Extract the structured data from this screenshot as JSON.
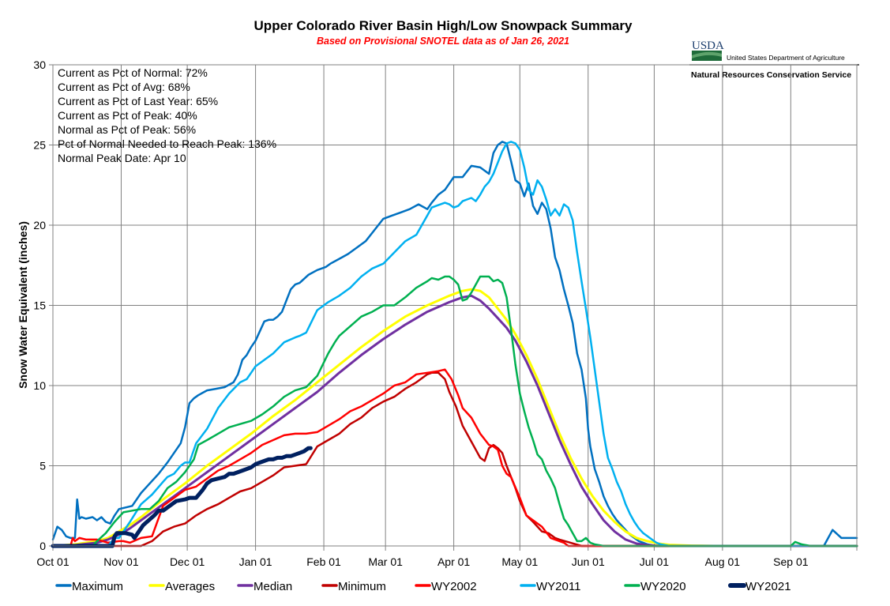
{
  "header": {
    "title": "Upper Colorado River Basin High/Low Snowpack Summary",
    "subtitle": "Based on Provisional SNOTEL data as of Jan 26, 2021"
  },
  "logo": {
    "abbrev": "USDA",
    "department": "United States Department of Agriculture",
    "agency": "Natural Resources Conservation Service"
  },
  "stats": [
    "Current as Pct of Normal:  72%",
    "Current as Pct of Avg: 68%",
    "Current as Pct of Last Year: 65%",
    "Current as Pct of Peak: 40%",
    "Normal as Pct of Peak: 56%",
    "Pct of Normal Needed to Reach Peak: 136%",
    "Normal Peak Date: Apr 10"
  ],
  "chart_data": {
    "type": "line",
    "title": "Upper Colorado River Basin High/Low Snowpack Summary",
    "subtitle": "Based on Provisional SNOTEL data as of Jan 26, 2021",
    "xlabel": "",
    "ylabel": "Snow Water Equivalent  (inches)",
    "x_unit": "day of water year (0 = Oct 01)",
    "xlim": [
      0,
      365
    ],
    "ylim": [
      0,
      30
    ],
    "yticks": [
      0,
      5,
      10,
      15,
      20,
      25,
      30
    ],
    "xticks": [
      {
        "day": 0,
        "label": "Oct 01"
      },
      {
        "day": 31,
        "label": "Nov 01"
      },
      {
        "day": 61,
        "label": "Dec 01"
      },
      {
        "day": 92,
        "label": "Jan 01"
      },
      {
        "day": 123,
        "label": "Feb 01"
      },
      {
        "day": 151,
        "label": "Mar 01"
      },
      {
        "day": 182,
        "label": "Apr 01"
      },
      {
        "day": 212,
        "label": "May 01"
      },
      {
        "day": 243,
        "label": "Jun 01"
      },
      {
        "day": 273,
        "label": "Jul 01"
      },
      {
        "day": 304,
        "label": "Aug 01"
      },
      {
        "day": 335,
        "label": "Sep 01"
      }
    ],
    "grid": true,
    "legend_position": "bottom",
    "series": [
      {
        "name": "Maximum",
        "color": "#0070c0",
        "width": 2.5,
        "x": [
          0,
          2,
          4,
          6,
          8,
          10,
          11,
          12,
          13,
          15,
          18,
          20,
          22,
          24,
          26,
          28,
          30,
          33,
          36,
          40,
          44,
          48,
          52,
          56,
          58,
          60,
          62,
          64,
          66,
          70,
          74,
          78,
          82,
          84,
          86,
          88,
          90,
          92,
          96,
          98,
          100,
          102,
          104,
          106,
          108,
          110,
          112,
          116,
          120,
          122,
          124,
          126,
          130,
          134,
          138,
          142,
          146,
          150,
          154,
          158,
          162,
          166,
          170,
          172,
          175,
          178,
          182,
          186,
          190,
          194,
          198,
          200,
          202,
          204,
          206,
          208,
          210,
          212,
          214,
          216,
          218,
          220,
          222,
          224,
          226,
          228,
          230,
          232,
          234,
          236,
          238,
          240,
          242,
          243,
          244,
          246,
          248,
          250,
          252,
          254,
          256,
          258,
          260,
          262,
          264,
          266,
          268,
          270,
          272,
          274,
          276,
          278,
          280,
          282,
          284,
          286,
          290,
          300,
          330,
          345,
          350,
          354,
          358,
          365
        ],
        "y": [
          0.4,
          1.2,
          1.0,
          0.6,
          0.5,
          0.5,
          2.9,
          1.7,
          1.8,
          1.7,
          1.8,
          1.6,
          1.8,
          1.5,
          1.4,
          1.9,
          2.3,
          2.4,
          2.5,
          3.3,
          3.9,
          4.5,
          5.2,
          6.0,
          6.4,
          7.4,
          8.9,
          9.2,
          9.4,
          9.7,
          9.8,
          9.9,
          10.2,
          10.7,
          11.6,
          11.9,
          12.4,
          12.8,
          14.0,
          14.1,
          14.1,
          14.3,
          14.6,
          15.3,
          16.0,
          16.3,
          16.4,
          16.9,
          17.2,
          17.3,
          17.4,
          17.6,
          17.9,
          18.2,
          18.6,
          19.0,
          19.7,
          20.4,
          20.6,
          20.8,
          21.0,
          21.3,
          21.0,
          21.4,
          21.9,
          22.2,
          23.0,
          23.0,
          23.7,
          23.6,
          23.2,
          24.5,
          25.0,
          25.2,
          25.1,
          24.0,
          22.8,
          22.6,
          21.8,
          22.6,
          21.2,
          20.7,
          21.4,
          21.0,
          19.8,
          18.0,
          17.2,
          16.0,
          15.0,
          13.9,
          12.0,
          11.0,
          9.2,
          7.3,
          6.2,
          4.8,
          4.0,
          3.1,
          2.5,
          2.0,
          1.6,
          1.3,
          1.0,
          0.7,
          0.5,
          0.3,
          0.2,
          0.1,
          0.05,
          0.0,
          0.0,
          0.0,
          0.0,
          0.0,
          0.0,
          0.0,
          0.0,
          0.0,
          0.0,
          0.0,
          0.0,
          1.0,
          0.5,
          0.5
        ]
      },
      {
        "name": "Averages",
        "color": "#ffff00",
        "width": 3,
        "x": [
          0,
          10,
          20,
          25,
          30,
          35,
          40,
          50,
          60,
          70,
          80,
          90,
          100,
          110,
          120,
          130,
          140,
          150,
          160,
          170,
          180,
          186,
          190,
          194,
          198,
          202,
          206,
          210,
          215,
          220,
          225,
          230,
          235,
          240,
          245,
          250,
          255,
          260,
          265,
          270,
          275,
          280,
          290,
          300,
          365
        ],
        "y": [
          0.0,
          0.1,
          0.3,
          0.5,
          0.9,
          1.3,
          1.8,
          2.9,
          3.9,
          5.0,
          6.0,
          7.0,
          8.1,
          9.1,
          10.2,
          11.3,
          12.4,
          13.4,
          14.3,
          15.0,
          15.6,
          15.9,
          16.0,
          15.9,
          15.5,
          14.8,
          14.1,
          13.2,
          11.9,
          10.4,
          8.7,
          7.0,
          5.5,
          4.2,
          3.1,
          2.2,
          1.5,
          0.9,
          0.5,
          0.3,
          0.15,
          0.07,
          0.02,
          0.0,
          0.0
        ]
      },
      {
        "name": "Median",
        "color": "#7030a0",
        "width": 3,
        "x": [
          0,
          10,
          20,
          25,
          30,
          35,
          40,
          50,
          60,
          70,
          80,
          90,
          100,
          110,
          120,
          130,
          140,
          150,
          160,
          170,
          180,
          186,
          190,
          194,
          198,
          202,
          206,
          210,
          215,
          220,
          225,
          230,
          235,
          240,
          245,
          250,
          255,
          260,
          265,
          270,
          275,
          280,
          300,
          365
        ],
        "y": [
          0.0,
          0.05,
          0.2,
          0.4,
          0.7,
          1.1,
          1.6,
          2.6,
          3.6,
          4.6,
          5.6,
          6.6,
          7.6,
          8.6,
          9.6,
          10.8,
          11.9,
          12.9,
          13.8,
          14.6,
          15.2,
          15.5,
          15.6,
          15.3,
          14.8,
          14.2,
          13.6,
          12.8,
          11.5,
          10.0,
          8.3,
          6.6,
          5.1,
          3.7,
          2.6,
          1.6,
          0.9,
          0.4,
          0.15,
          0.05,
          0.0,
          0.0,
          0.0,
          0.0
        ]
      },
      {
        "name": "Minimum",
        "color": "#c00000",
        "width": 2.5,
        "x": [
          0,
          40,
          45,
          50,
          55,
          60,
          65,
          70,
          75,
          80,
          85,
          90,
          95,
          100,
          105,
          110,
          115,
          120,
          125,
          130,
          135,
          140,
          145,
          150,
          155,
          160,
          165,
          170,
          172,
          175,
          178,
          180,
          183,
          186,
          190,
          192,
          194,
          196,
          198,
          200,
          202,
          204,
          206,
          208,
          210,
          212,
          215,
          218,
          220,
          222,
          225,
          228,
          230,
          235,
          240,
          365
        ],
        "y": [
          0.0,
          0.0,
          0.3,
          0.9,
          1.2,
          1.4,
          1.9,
          2.3,
          2.6,
          3.0,
          3.4,
          3.6,
          4.0,
          4.4,
          4.9,
          5.0,
          5.1,
          6.2,
          6.6,
          7.0,
          7.6,
          8.0,
          8.6,
          9.0,
          9.3,
          9.8,
          10.2,
          10.7,
          10.8,
          10.8,
          10.4,
          9.6,
          8.7,
          7.5,
          6.5,
          6.0,
          5.5,
          5.3,
          6.1,
          6.3,
          6.1,
          5.8,
          5.0,
          4.3,
          3.6,
          2.8,
          1.9,
          1.5,
          1.2,
          0.9,
          0.8,
          0.5,
          0.4,
          0.2,
          0.0,
          0.0
        ]
      },
      {
        "name": "WY2002",
        "color": "#ff0000",
        "width": 2.5,
        "x": [
          0,
          8,
          9,
          10,
          12,
          15,
          20,
          25,
          30,
          32,
          35,
          40,
          45,
          50,
          55,
          60,
          65,
          70,
          75,
          80,
          85,
          90,
          95,
          100,
          105,
          110,
          115,
          120,
          125,
          130,
          135,
          140,
          145,
          150,
          155,
          160,
          165,
          170,
          175,
          178,
          181,
          184,
          186,
          188,
          190,
          194,
          198,
          200,
          202,
          204,
          206,
          208,
          212,
          215,
          218,
          222,
          226,
          228,
          230,
          232,
          234,
          240,
          365
        ],
        "y": [
          0.0,
          0.0,
          0.5,
          0.3,
          0.5,
          0.4,
          0.4,
          0.2,
          0.3,
          0.3,
          0.2,
          0.5,
          0.6,
          2.5,
          3.0,
          3.5,
          3.7,
          4.2,
          4.7,
          5.0,
          5.4,
          5.8,
          6.3,
          6.6,
          6.9,
          7.0,
          7.0,
          7.1,
          7.5,
          7.9,
          8.4,
          8.7,
          9.1,
          9.5,
          10.0,
          10.2,
          10.7,
          10.8,
          10.9,
          11.0,
          10.4,
          9.4,
          8.6,
          8.3,
          8.0,
          7.0,
          6.3,
          6.2,
          6.0,
          5.0,
          4.5,
          4.3,
          3.0,
          1.9,
          1.6,
          1.2,
          0.5,
          0.4,
          0.3,
          0.2,
          0.0,
          0.0,
          0.0
        ]
      },
      {
        "name": "WY2011",
        "color": "#00b0f0",
        "width": 2.5,
        "x": [
          0,
          25,
          28,
          30,
          35,
          40,
          45,
          50,
          52,
          55,
          58,
          60,
          62,
          65,
          70,
          75,
          80,
          85,
          88,
          90,
          92,
          95,
          100,
          105,
          110,
          112,
          115,
          120,
          125,
          130,
          135,
          140,
          145,
          150,
          155,
          160,
          165,
          170,
          172,
          174,
          176,
          178,
          180,
          182,
          184,
          186,
          188,
          190,
          192,
          194,
          196,
          198,
          200,
          202,
          204,
          206,
          208,
          210,
          212,
          214,
          216,
          218,
          220,
          222,
          224,
          226,
          228,
          230,
          232,
          234,
          236,
          238,
          240,
          242,
          244,
          246,
          248,
          250,
          252,
          254,
          256,
          258,
          260,
          262,
          264,
          266,
          268,
          270,
          272,
          274,
          276,
          278,
          280,
          365
        ],
        "y": [
          0.0,
          0.0,
          0.5,
          0.5,
          1.5,
          2.6,
          3.2,
          4.0,
          4.3,
          4.5,
          5.0,
          5.2,
          5.2,
          6.4,
          7.3,
          8.6,
          9.5,
          10.2,
          10.4,
          10.8,
          11.2,
          11.5,
          12.0,
          12.7,
          13.0,
          13.1,
          13.3,
          14.7,
          15.2,
          15.6,
          16.1,
          16.8,
          17.3,
          17.6,
          18.3,
          19.0,
          19.4,
          20.6,
          21.1,
          21.2,
          21.3,
          21.4,
          21.3,
          21.1,
          21.2,
          21.5,
          21.6,
          21.7,
          21.5,
          21.9,
          22.4,
          22.7,
          23.2,
          23.9,
          24.6,
          25.1,
          25.2,
          25.1,
          24.7,
          23.6,
          22.2,
          21.9,
          22.8,
          22.4,
          21.6,
          20.6,
          21.0,
          20.6,
          21.3,
          21.1,
          20.3,
          18.3,
          16.5,
          14.8,
          13.0,
          11.0,
          9.0,
          7.0,
          5.5,
          4.8,
          4.0,
          3.4,
          2.6,
          2.0,
          1.5,
          1.1,
          0.8,
          0.6,
          0.4,
          0.2,
          0.1,
          0.05,
          0.0,
          0.0
        ]
      },
      {
        "name": "WY2020",
        "color": "#00b050",
        "width": 2.5,
        "x": [
          0,
          18,
          20,
          24,
          28,
          32,
          36,
          40,
          44,
          48,
          52,
          56,
          60,
          64,
          66,
          70,
          75,
          80,
          85,
          90,
          95,
          100,
          105,
          110,
          115,
          120,
          125,
          128,
          130,
          135,
          140,
          145,
          150,
          155,
          160,
          165,
          170,
          172,
          175,
          178,
          180,
          182,
          184,
          186,
          188,
          190,
          192,
          194,
          196,
          198,
          200,
          202,
          204,
          206,
          208,
          210,
          212,
          214,
          216,
          218,
          220,
          222,
          224,
          226,
          228,
          230,
          232,
          234,
          236,
          238,
          240,
          242,
          244,
          246,
          248,
          250,
          335,
          337,
          340,
          344,
          365
        ],
        "y": [
          0.0,
          0.0,
          0.3,
          0.8,
          1.5,
          2.1,
          2.2,
          2.3,
          2.3,
          2.8,
          3.6,
          4.0,
          4.6,
          5.4,
          6.3,
          6.6,
          7.0,
          7.4,
          7.6,
          7.8,
          8.2,
          8.7,
          9.3,
          9.7,
          9.9,
          10.6,
          12.0,
          12.7,
          13.1,
          13.7,
          14.3,
          14.6,
          15.0,
          15.0,
          15.5,
          16.1,
          16.5,
          16.7,
          16.6,
          16.8,
          16.8,
          16.6,
          16.3,
          15.3,
          15.4,
          15.8,
          16.3,
          16.8,
          16.8,
          16.8,
          16.5,
          16.6,
          16.4,
          15.5,
          13.5,
          11.3,
          9.5,
          8.4,
          7.4,
          6.6,
          5.7,
          5.4,
          4.7,
          4.2,
          3.6,
          2.6,
          1.7,
          1.3,
          0.8,
          0.3,
          0.3,
          0.5,
          0.2,
          0.1,
          0.05,
          0.0,
          0.0,
          0.25,
          0.1,
          0.0,
          0.0
        ]
      },
      {
        "name": "WY2021",
        "color": "#002060",
        "width": 5,
        "x": [
          0,
          27,
          28,
          29,
          33,
          36,
          37,
          41,
          46,
          48,
          50,
          52,
          56,
          60,
          62,
          65,
          68,
          70,
          72,
          75,
          78,
          80,
          82,
          84,
          86,
          88,
          90,
          92,
          94,
          96,
          98,
          100,
          102,
          104,
          106,
          108,
          110,
          112,
          114,
          116,
          117
        ],
        "y": [
          0.0,
          0.0,
          0.6,
          0.8,
          0.8,
          0.7,
          0.5,
          1.3,
          1.9,
          2.2,
          2.2,
          2.4,
          2.8,
          2.9,
          3.0,
          3.0,
          3.5,
          3.9,
          4.1,
          4.2,
          4.3,
          4.5,
          4.5,
          4.6,
          4.7,
          4.8,
          4.9,
          5.1,
          5.2,
          5.3,
          5.4,
          5.4,
          5.5,
          5.5,
          5.6,
          5.6,
          5.7,
          5.8,
          5.9,
          6.1,
          6.1
        ]
      }
    ]
  }
}
